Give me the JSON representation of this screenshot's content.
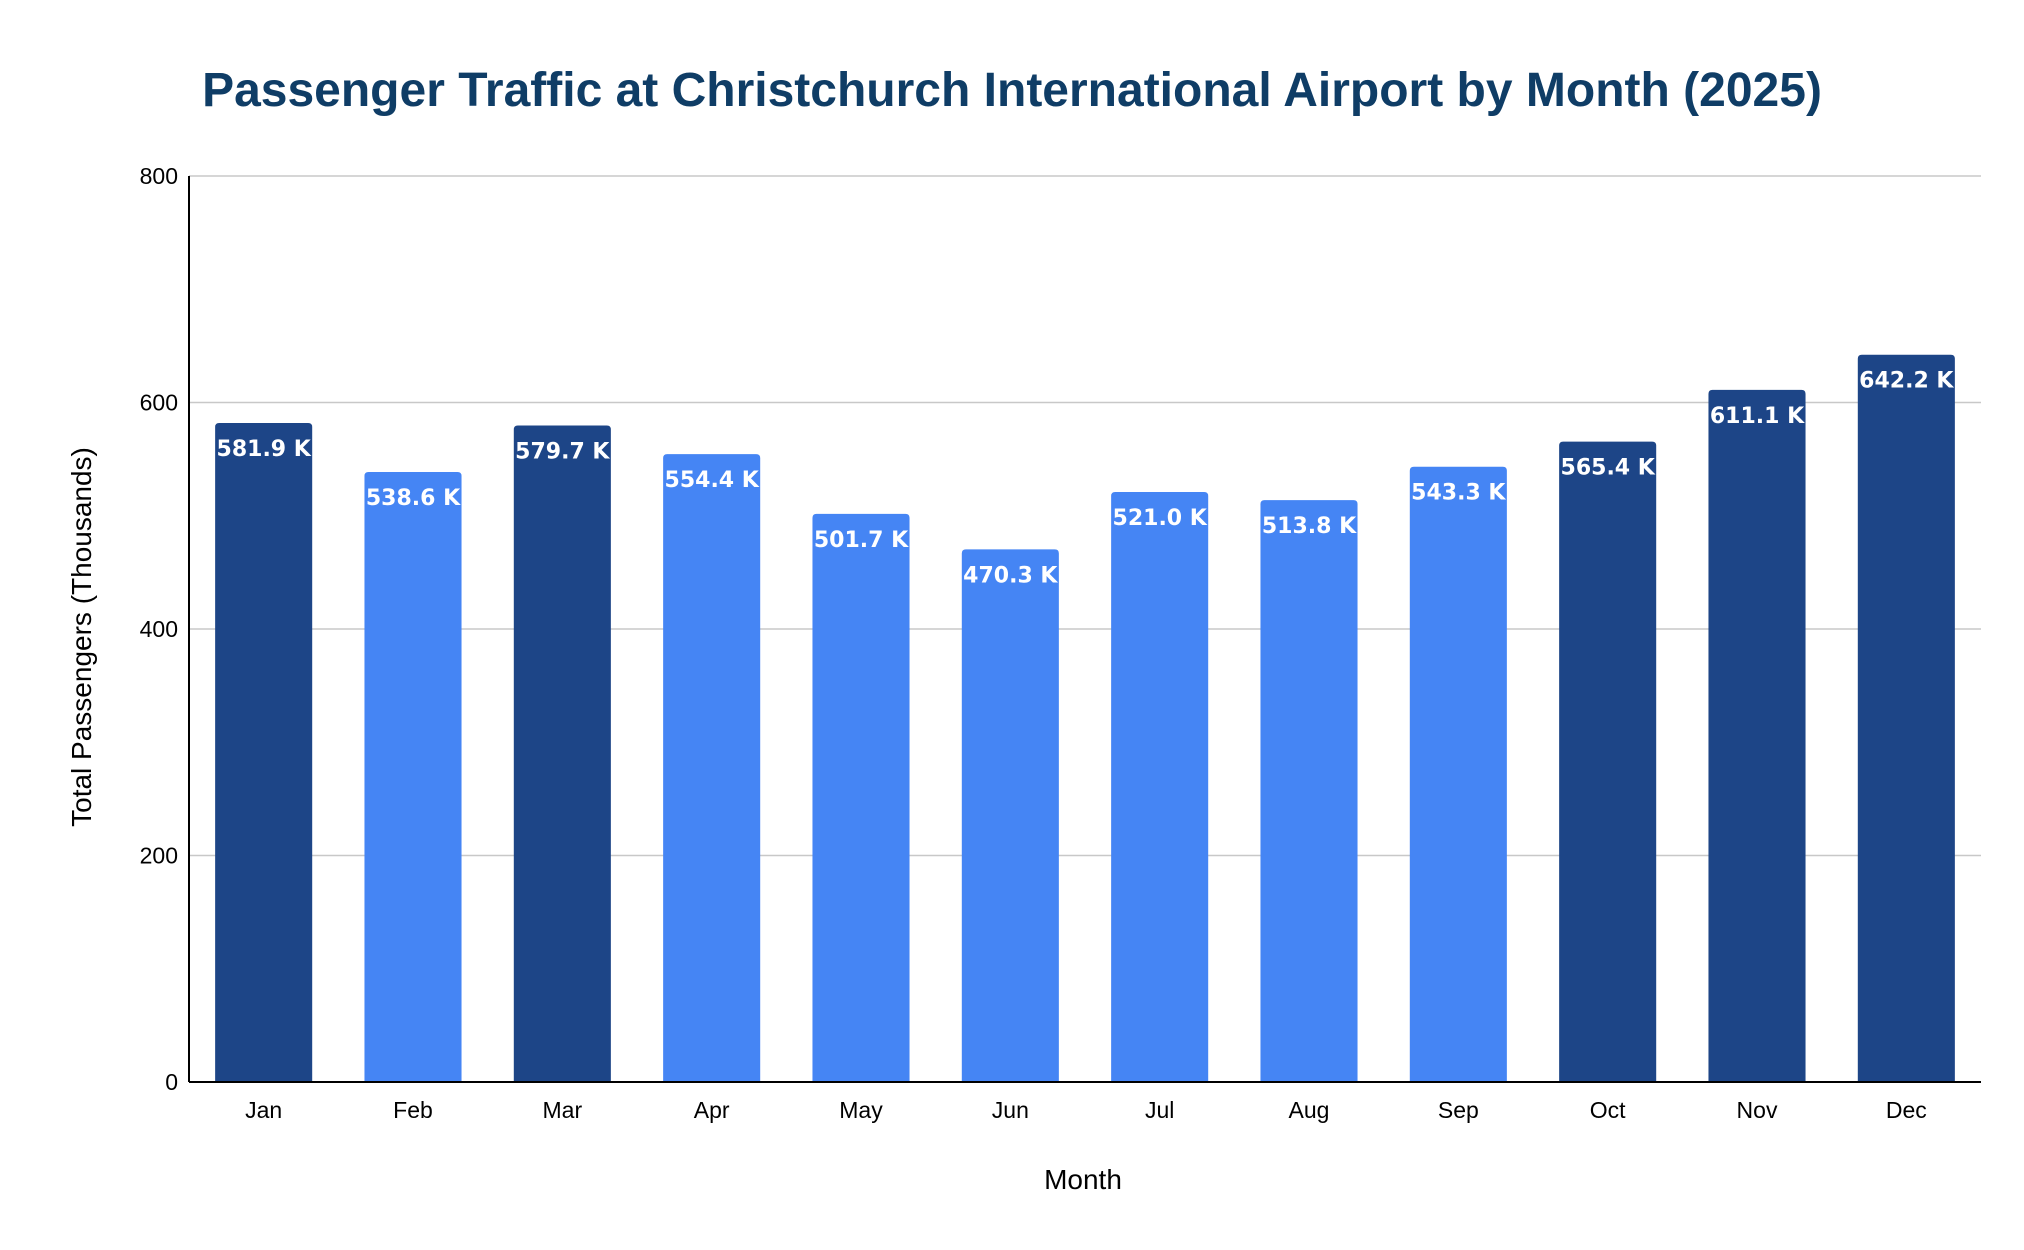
{
  "chart_data": {
    "type": "bar",
    "title": "Passenger Traffic at Christchurch International Airport by Month (2025)",
    "xlabel": "Month",
    "ylabel": "Total Passengers (Thousands)",
    "categories": [
      "Jan",
      "Feb",
      "Mar",
      "Apr",
      "May",
      "Jun",
      "Jul",
      "Aug",
      "Sep",
      "Oct",
      "Nov",
      "Dec"
    ],
    "values": [
      581.9,
      538.6,
      579.7,
      554.4,
      501.7,
      470.3,
      521.0,
      513.8,
      543.3,
      565.4,
      611.1,
      642.2
    ],
    "data_labels": [
      "581.9 K",
      "538.6 K",
      "579.7 K",
      "554.4 K",
      "501.7 K",
      "470.3 K",
      "521.0 K",
      "513.8 K",
      "543.3 K",
      "565.4 K",
      "611.1 K",
      "642.2 K"
    ],
    "highlight": [
      true,
      false,
      true,
      false,
      false,
      false,
      false,
      false,
      false,
      true,
      true,
      true
    ],
    "ylim": [
      0,
      800
    ],
    "yticks": [
      0,
      200,
      400,
      600,
      800
    ],
    "grid": true,
    "legend": "none",
    "colors": {
      "title": "#0f3d66",
      "bar_highlight": "#1d4587",
      "bar_default": "#4585f4",
      "grid": "#c8c8c8",
      "axis": "#000000",
      "data_label": "#ffffff"
    }
  }
}
